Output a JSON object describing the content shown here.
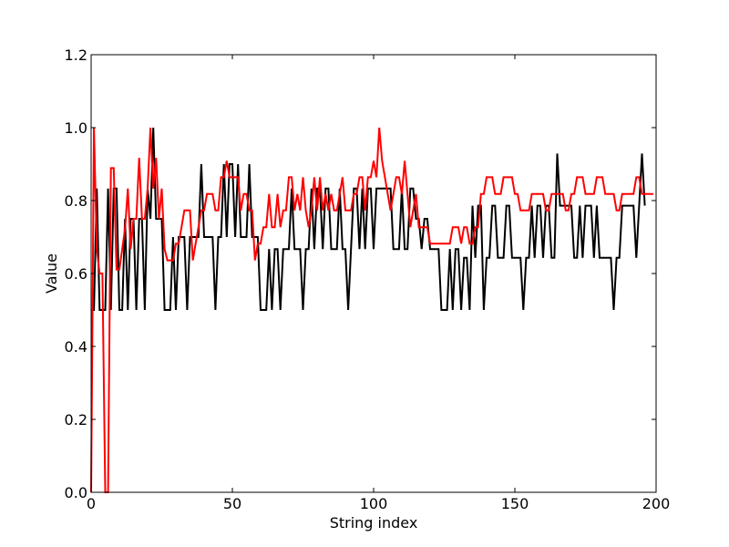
{
  "chart_data": {
    "type": "line",
    "title": "",
    "xlabel": "String index",
    "ylabel": "Value",
    "xlim": [
      0,
      200
    ],
    "ylim": [
      0.0,
      1.2
    ],
    "xticks": [
      0,
      50,
      100,
      150,
      200
    ],
    "xtick_labels": [
      "0",
      "50",
      "100",
      "150",
      "200"
    ],
    "yticks": [
      0.0,
      0.2,
      0.4,
      0.6,
      0.8,
      1.0,
      1.2
    ],
    "ytick_labels": [
      "0.0",
      "0.2",
      "0.4",
      "0.6",
      "0.8",
      "1.0",
      "1.2"
    ],
    "grid": false,
    "legend": "none",
    "series": [
      {
        "color": "#000000",
        "values": [
          0.5,
          0.5,
          0.833,
          0.5,
          0.5,
          0.5,
          0.833,
          0.5,
          0.833,
          0.833,
          0.5,
          0.5,
          0.75,
          0.5,
          0.75,
          0.75,
          0.5,
          0.75,
          0.75,
          0.5,
          0.833,
          0.75,
          1.0,
          0.75,
          0.75,
          0.75,
          0.5,
          0.5,
          0.5,
          0.7,
          0.5,
          0.7,
          0.7,
          0.7,
          0.5,
          0.7,
          0.7,
          0.7,
          0.7,
          0.9,
          0.7,
          0.7,
          0.7,
          0.7,
          0.5,
          0.7,
          0.7,
          0.9,
          0.7,
          0.9,
          0.9,
          0.7,
          0.9,
          0.7,
          0.7,
          0.7,
          0.9,
          0.7,
          0.7,
          0.7,
          0.5,
          0.5,
          0.5,
          0.667,
          0.5,
          0.667,
          0.667,
          0.5,
          0.667,
          0.667,
          0.667,
          0.833,
          0.667,
          0.667,
          0.667,
          0.5,
          0.667,
          0.667,
          0.833,
          0.667,
          0.833,
          0.833,
          0.667,
          0.833,
          0.833,
          0.667,
          0.667,
          0.667,
          0.833,
          0.667,
          0.667,
          0.5,
          0.667,
          0.833,
          0.833,
          0.667,
          0.833,
          0.667,
          0.833,
          0.833,
          0.667,
          0.833,
          0.833,
          0.833,
          0.833,
          0.833,
          0.833,
          0.667,
          0.667,
          0.667,
          0.833,
          0.667,
          0.667,
          0.833,
          0.833,
          0.75,
          0.75,
          0.667,
          0.75,
          0.75,
          0.667,
          0.667,
          0.667,
          0.667,
          0.5,
          0.5,
          0.5,
          0.667,
          0.5,
          0.667,
          0.667,
          0.5,
          0.643,
          0.643,
          0.5,
          0.786,
          0.643,
          0.786,
          0.786,
          0.5,
          0.643,
          0.643,
          0.786,
          0.786,
          0.643,
          0.643,
          0.643,
          0.786,
          0.786,
          0.643,
          0.643,
          0.643,
          0.643,
          0.5,
          0.643,
          0.643,
          0.786,
          0.643,
          0.786,
          0.786,
          0.643,
          0.786,
          0.786,
          0.643,
          0.643,
          0.929,
          0.786,
          0.786,
          0.786,
          0.786,
          0.786,
          0.643,
          0.643,
          0.786,
          0.643,
          0.786,
          0.786,
          0.786,
          0.643,
          0.786,
          0.643,
          0.643,
          0.643,
          0.643,
          0.643,
          0.5,
          0.643,
          0.643,
          0.786,
          0.786,
          0.786,
          0.786,
          0.786,
          0.643,
          0.786,
          0.929,
          0.786
        ]
      },
      {
        "color": "#ff0000",
        "values": [
          0.0,
          1.0,
          0.667,
          0.6,
          0.6,
          0.0,
          0.0,
          0.889,
          0.889,
          0.611,
          0.611,
          0.667,
          0.722,
          0.833,
          0.667,
          0.75,
          0.75,
          0.917,
          0.75,
          0.75,
          0.833,
          1.0,
          0.833,
          0.917,
          0.75,
          0.833,
          0.667,
          0.636,
          0.636,
          0.636,
          0.682,
          0.682,
          0.727,
          0.773,
          0.773,
          0.773,
          0.636,
          0.682,
          0.727,
          0.773,
          0.773,
          0.818,
          0.818,
          0.818,
          0.773,
          0.773,
          0.864,
          0.864,
          0.909,
          0.864,
          0.864,
          0.864,
          0.864,
          0.773,
          0.818,
          0.818,
          0.773,
          0.773,
          0.636,
          0.682,
          0.682,
          0.727,
          0.727,
          0.818,
          0.727,
          0.727,
          0.818,
          0.727,
          0.773,
          0.773,
          0.864,
          0.864,
          0.773,
          0.818,
          0.773,
          0.864,
          0.773,
          0.727,
          0.773,
          0.864,
          0.773,
          0.864,
          0.773,
          0.818,
          0.773,
          0.818,
          0.773,
          0.773,
          0.818,
          0.864,
          0.773,
          0.773,
          0.773,
          0.818,
          0.818,
          0.864,
          0.864,
          0.773,
          0.864,
          0.864,
          0.909,
          0.864,
          1.0,
          0.909,
          0.864,
          0.818,
          0.773,
          0.818,
          0.864,
          0.864,
          0.818,
          0.909,
          0.818,
          0.727,
          0.773,
          0.818,
          0.727,
          0.727,
          0.727,
          0.727,
          0.682,
          0.682,
          0.682,
          0.682,
          0.682,
          0.682,
          0.682,
          0.682,
          0.727,
          0.727,
          0.727,
          0.682,
          0.727,
          0.727,
          0.682,
          0.682,
          0.727,
          0.727,
          0.818,
          0.818,
          0.864,
          0.864,
          0.864,
          0.818,
          0.818,
          0.818,
          0.864,
          0.864,
          0.864,
          0.864,
          0.818,
          0.818,
          0.773,
          0.773,
          0.773,
          0.773,
          0.818,
          0.818,
          0.818,
          0.818,
          0.818,
          0.773,
          0.773,
          0.818,
          0.818,
          0.818,
          0.818,
          0.818,
          0.773,
          0.773,
          0.818,
          0.818,
          0.864,
          0.864,
          0.864,
          0.818,
          0.818,
          0.818,
          0.818,
          0.864,
          0.864,
          0.864,
          0.818,
          0.818,
          0.818,
          0.818,
          0.773,
          0.773,
          0.818,
          0.818,
          0.818,
          0.818,
          0.818,
          0.864,
          0.864,
          0.818,
          0.818,
          0.818,
          0.818,
          0.818
        ]
      }
    ]
  }
}
